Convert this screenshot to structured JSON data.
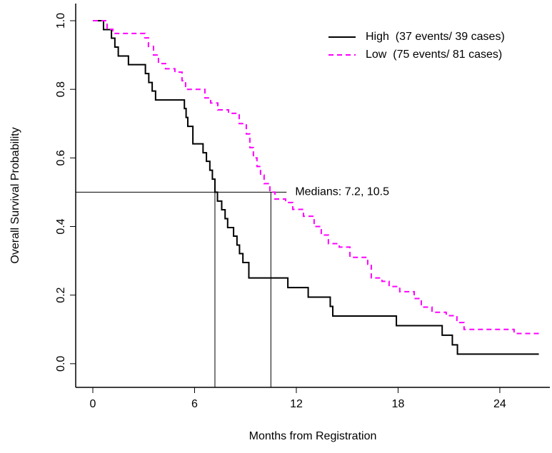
{
  "chart_data": {
    "type": "step",
    "xlabel": "Months from Registration",
    "ylabel": "Overall Survival Probability",
    "xlim": [
      -1.01,
      26.95
    ],
    "ylim": [
      -0.069,
      1.05
    ],
    "xticks": [
      0,
      6,
      12,
      18,
      24
    ],
    "yticks": [
      {
        "value": 0,
        "label": "0.0"
      },
      0.2,
      0.4,
      0.6,
      0.8,
      {
        "value": 1,
        "label": "1.0"
      }
    ],
    "legend": "top-right",
    "series": [
      {
        "name": "High  (37 events/ 39 cases)",
        "color": "#000000",
        "dash": "solid",
        "x": [
          0,
          0.63,
          1.1,
          1.3,
          1.5,
          2.1,
          3.1,
          3.3,
          3.5,
          3.7,
          5.4,
          5.5,
          5.6,
          5.9,
          6.5,
          6.7,
          6.9,
          7.05,
          7.2,
          7.35,
          7.6,
          7.8,
          7.95,
          8.3,
          8.5,
          8.65,
          8.85,
          9.2,
          11.5,
          12.7,
          14.0,
          14.15,
          17.9,
          20.6,
          21.2,
          21.5,
          26.3
        ],
        "values": [
          1,
          0.974,
          0.949,
          0.923,
          0.897,
          0.872,
          0.846,
          0.82,
          0.795,
          0.769,
          0.744,
          0.718,
          0.692,
          0.641,
          0.615,
          0.59,
          0.564,
          0.538,
          0.5,
          0.474,
          0.449,
          0.423,
          0.397,
          0.372,
          0.346,
          0.321,
          0.295,
          0.25,
          0.222,
          0.194,
          0.167,
          0.139,
          0.111,
          0.083,
          0.055,
          0.028,
          0.028
        ]
      },
      {
        "name": "Low  (75 events/ 81 cases)",
        "color": "#ff00ff",
        "dash": "dashed",
        "x": [
          0,
          0.84,
          1.18,
          3.07,
          3.28,
          3.58,
          3.87,
          4.29,
          4.84,
          5.26,
          5.47,
          6.61,
          6.95,
          7.37,
          8.0,
          8.63,
          9.05,
          9.26,
          9.47,
          9.68,
          9.89,
          10.1,
          10.44,
          10.74,
          11.37,
          11.79,
          12.42,
          13.05,
          13.47,
          13.89,
          14.53,
          15.16,
          16.21,
          16.42,
          17.05,
          17.47,
          18.1,
          18.95,
          19.37,
          20.0,
          20.84,
          21.47,
          21.89,
          24.84,
          26.32
        ],
        "values": [
          1,
          0.975,
          0.963,
          0.95,
          0.925,
          0.9,
          0.875,
          0.86,
          0.85,
          0.825,
          0.8,
          0.775,
          0.76,
          0.74,
          0.73,
          0.7,
          0.67,
          0.63,
          0.6,
          0.575,
          0.55,
          0.525,
          0.5,
          0.48,
          0.47,
          0.45,
          0.43,
          0.4,
          0.375,
          0.35,
          0.34,
          0.31,
          0.29,
          0.25,
          0.24,
          0.225,
          0.21,
          0.19,
          0.165,
          0.15,
          0.14,
          0.12,
          0.1,
          0.088,
          0.088
        ]
      }
    ],
    "median_level": 0.5,
    "medians": [
      7.2,
      10.5
    ],
    "median_label": "Medians: 7.2, 10.5"
  }
}
